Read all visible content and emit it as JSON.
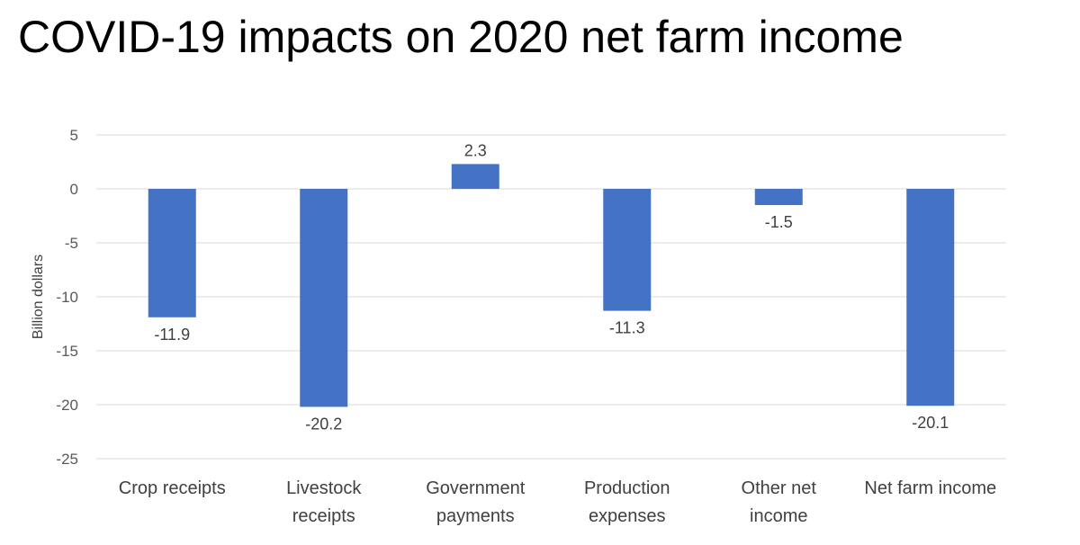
{
  "slide": {
    "title": "COVID-19 impacts on 2020 net farm income"
  },
  "chart_data": {
    "type": "bar",
    "title": "COVID-19 impacts on 2020 net farm income",
    "ylabel": "Billion dollars",
    "xlabel": "",
    "categories": [
      [
        "Crop receipts"
      ],
      [
        "Livestock",
        "receipts"
      ],
      [
        "Government",
        "payments"
      ],
      [
        "Production",
        "expenses"
      ],
      [
        "Other net",
        "income"
      ],
      [
        "Net farm income"
      ]
    ],
    "values": [
      -11.9,
      -20.2,
      2.3,
      -11.3,
      -1.5,
      -20.1
    ],
    "data_labels": [
      "-11.9",
      "-20.2",
      "2.3",
      "-11.3",
      "-1.5",
      "-20.1"
    ],
    "ylim": [
      -25,
      5
    ],
    "yticks": [
      5,
      0,
      -5,
      -10,
      -15,
      -20,
      -25
    ],
    "grid": true,
    "legend": "none",
    "colors": {
      "bar": "#4472C4",
      "grid": "#D9D9D9",
      "zero_line": "#D9D9D9"
    }
  }
}
